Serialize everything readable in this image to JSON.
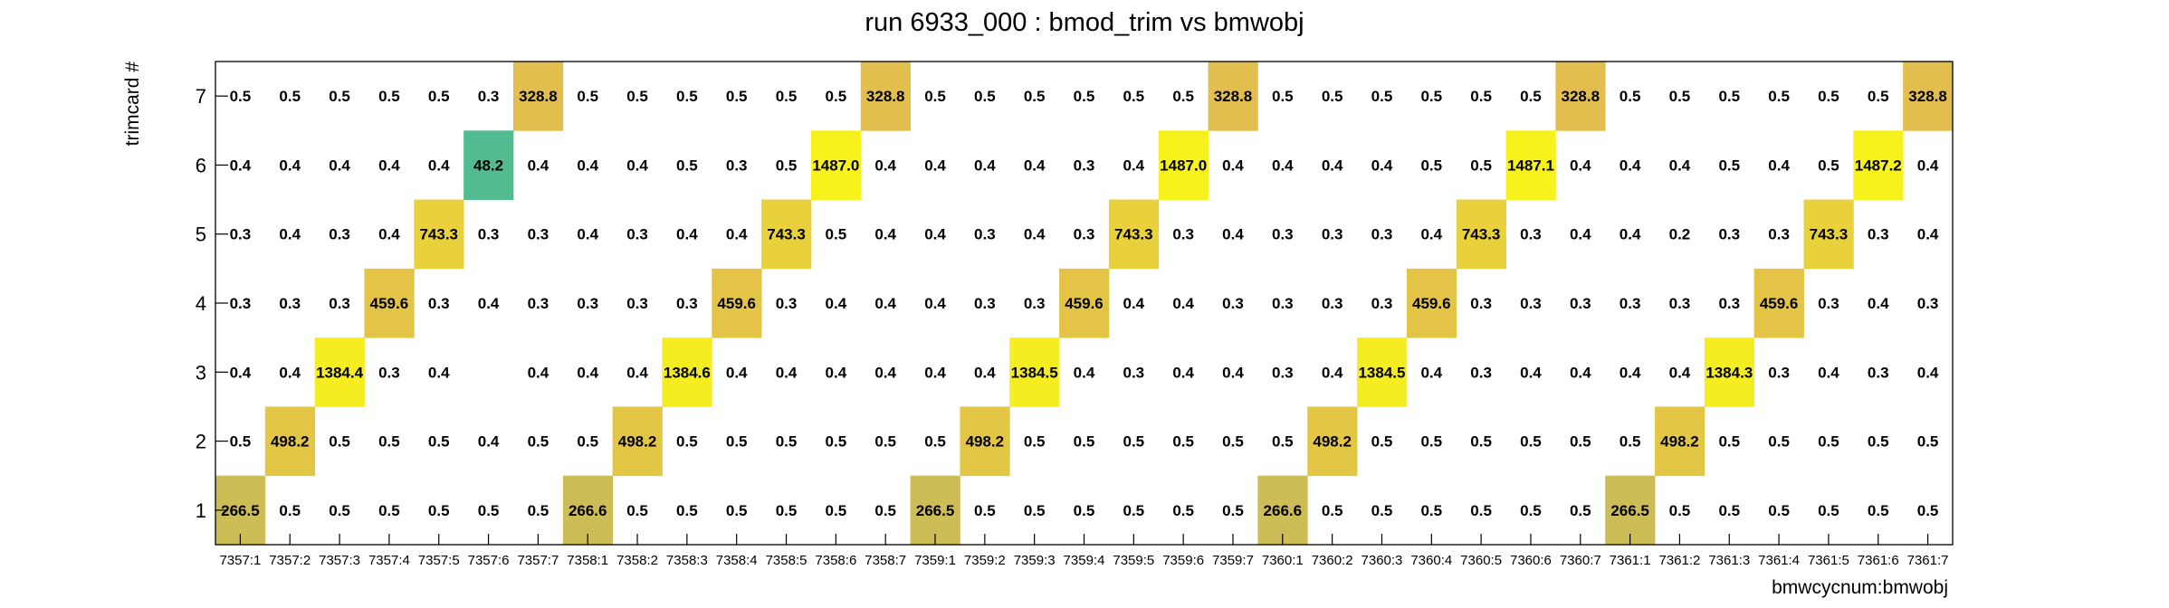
{
  "chart_data": {
    "type": "heatmap",
    "title": "run 6933_000 : bmod_trim vs bmwobj",
    "xlabel": "bmwcycnum:bmwobj",
    "ylabel": "trimcard #",
    "categories": [
      "7357:1",
      "7357:2",
      "7357:3",
      "7357:4",
      "7357:5",
      "7357:6",
      "7357:7",
      "7358:1",
      "7358:2",
      "7358:3",
      "7358:4",
      "7358:5",
      "7358:6",
      "7358:7",
      "7359:1",
      "7359:2",
      "7359:3",
      "7359:4",
      "7359:5",
      "7359:6",
      "7359:7",
      "7360:1",
      "7360:2",
      "7360:3",
      "7360:4",
      "7360:5",
      "7360:6",
      "7360:7",
      "7361:1",
      "7361:2",
      "7361:3",
      "7361:4",
      "7361:5",
      "7361:6",
      "7361:7"
    ],
    "y_categories": [
      "1",
      "2",
      "3",
      "4",
      "5",
      "6",
      "7"
    ],
    "grid": false,
    "rows": [
      {
        "y": "7",
        "values": [
          "0.5",
          "0.5",
          "0.5",
          "0.5",
          "0.5",
          "0.3",
          "328.8",
          "0.5",
          "0.5",
          "0.5",
          "0.5",
          "0.5",
          "0.5",
          "328.8",
          "0.5",
          "0.5",
          "0.5",
          "0.5",
          "0.5",
          "0.5",
          "328.8",
          "0.5",
          "0.5",
          "0.5",
          "0.5",
          "0.5",
          "0.5",
          "328.8",
          "0.5",
          "0.5",
          "0.5",
          "0.5",
          "0.5",
          "0.5",
          "328.8"
        ]
      },
      {
        "y": "6",
        "values": [
          "0.4",
          "0.4",
          "0.4",
          "0.4",
          "0.4",
          "48.2",
          "0.4",
          "0.4",
          "0.4",
          "0.5",
          "0.3",
          "0.5",
          "1487.0",
          "0.4",
          "0.4",
          "0.4",
          "0.4",
          "0.3",
          "0.4",
          "1487.0",
          "0.4",
          "0.4",
          "0.4",
          "0.4",
          "0.5",
          "0.5",
          "1487.1",
          "0.4",
          "0.4",
          "0.4",
          "0.5",
          "0.4",
          "0.5",
          "1487.2",
          "0.4"
        ]
      },
      {
        "y": "5",
        "values": [
          "0.3",
          "0.4",
          "0.3",
          "0.4",
          "743.3",
          "0.3",
          "0.3",
          "0.4",
          "0.3",
          "0.4",
          "0.4",
          "743.3",
          "0.5",
          "0.4",
          "0.4",
          "0.3",
          "0.4",
          "0.3",
          "743.3",
          "0.3",
          "0.4",
          "0.3",
          "0.3",
          "0.3",
          "0.4",
          "743.3",
          "0.3",
          "0.4",
          "0.4",
          "0.2",
          "0.3",
          "0.3",
          "743.3",
          "0.3",
          "0.4"
        ]
      },
      {
        "y": "4",
        "values": [
          "0.3",
          "0.3",
          "0.3",
          "459.6",
          "0.3",
          "0.4",
          "0.3",
          "0.3",
          "0.3",
          "0.3",
          "459.6",
          "0.3",
          "0.4",
          "0.4",
          "0.4",
          "0.3",
          "0.3",
          "459.6",
          "0.4",
          "0.4",
          "0.3",
          "0.3",
          "0.3",
          "0.3",
          "459.6",
          "0.3",
          "0.3",
          "0.3",
          "0.3",
          "0.3",
          "0.3",
          "459.6",
          "0.3",
          "0.4",
          "0.3"
        ]
      },
      {
        "y": "3",
        "values": [
          "0.4",
          "0.4",
          "1384.4",
          "0.3",
          "0.4",
          "",
          "0.4",
          "0.4",
          "0.4",
          "1384.6",
          "0.4",
          "0.4",
          "0.4",
          "0.4",
          "0.4",
          "0.4",
          "1384.5",
          "0.4",
          "0.3",
          "0.4",
          "0.4",
          "0.3",
          "0.4",
          "1384.5",
          "0.4",
          "0.3",
          "0.4",
          "0.4",
          "0.4",
          "0.4",
          "1384.3",
          "0.3",
          "0.4",
          "0.3",
          "0.4"
        ]
      },
      {
        "y": "2",
        "values": [
          "0.5",
          "498.2",
          "0.5",
          "0.5",
          "0.5",
          "0.4",
          "0.5",
          "0.5",
          "498.2",
          "0.5",
          "0.5",
          "0.5",
          "0.5",
          "0.5",
          "0.5",
          "498.2",
          "0.5",
          "0.5",
          "0.5",
          "0.5",
          "0.5",
          "0.5",
          "498.2",
          "0.5",
          "0.5",
          "0.5",
          "0.5",
          "0.5",
          "0.5",
          "498.2",
          "0.5",
          "0.5",
          "0.5",
          "0.5",
          "0.5"
        ]
      },
      {
        "y": "1",
        "values": [
          "266.5",
          "0.5",
          "0.5",
          "0.5",
          "0.5",
          "0.5",
          "0.5",
          "266.6",
          "0.5",
          "0.5",
          "0.5",
          "0.5",
          "0.5",
          "0.5",
          "266.5",
          "0.5",
          "0.5",
          "0.5",
          "0.5",
          "0.5",
          "0.5",
          "266.6",
          "0.5",
          "0.5",
          "0.5",
          "0.5",
          "0.5",
          "0.5",
          "266.5",
          "0.5",
          "0.5",
          "0.5",
          "0.5",
          "0.5",
          "0.5"
        ]
      }
    ],
    "colors": {
      "low": "#52bb8f",
      "mid": "#e0bd4e",
      "high": "#f8f21c",
      "frame": "#000000"
    }
  }
}
